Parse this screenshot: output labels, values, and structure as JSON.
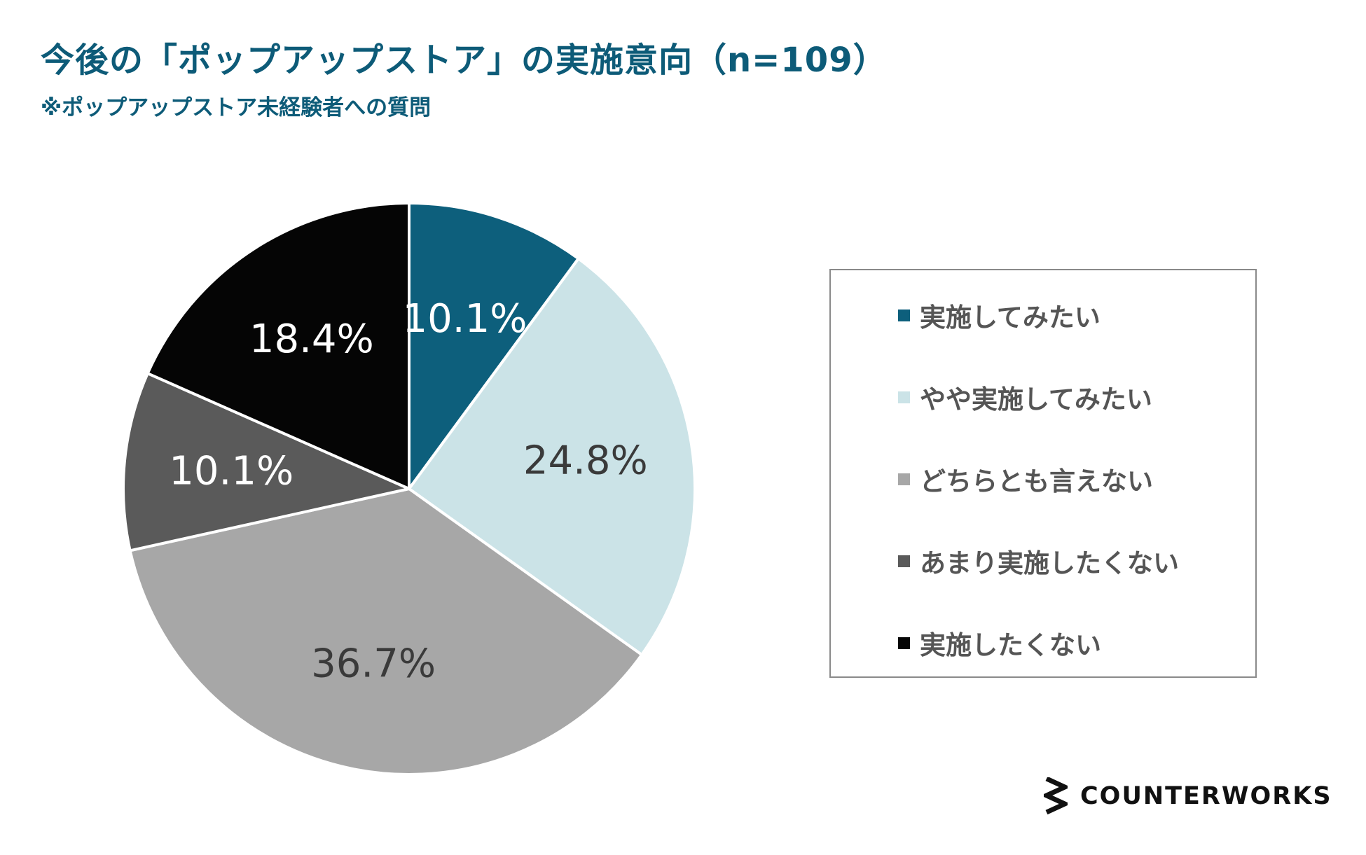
{
  "title": "今後の「ポップアップストア」の実施意向（n=109）",
  "subtitle": "※ポップアップストア未経験者への質問",
  "brand": {
    "name": "COUNTERWORKS",
    "icon": "counterworks-logo-icon"
  },
  "chart_data": {
    "type": "pie",
    "title": "今後の「ポップアップストア」の実施意向（n=109）",
    "subtitle": "※ポップアップストア未経験者への質問",
    "legend_position": "right",
    "start_angle": "12 o'clock, clockwise",
    "slices": [
      {
        "label": "実施してみたい",
        "value": 10.1,
        "display": "10.1%",
        "color": "#0d5f7c",
        "label_color": "#ffffff"
      },
      {
        "label": "やや実施してみたい",
        "value": 24.8,
        "display": "24.8%",
        "color": "#cbe3e7",
        "label_color": "#3a3a3a"
      },
      {
        "label": "どちらとも言えない",
        "value": 36.7,
        "display": "36.7%",
        "color": "#a7a7a7",
        "label_color": "#3a3a3a"
      },
      {
        "label": "あまり実施したくない",
        "value": 10.1,
        "display": "10.1%",
        "color": "#5a5a5a",
        "label_color": "#ffffff"
      },
      {
        "label": "実施したくない",
        "value": 18.4,
        "display": "18.4%",
        "color": "#050505",
        "label_color": "#ffffff"
      }
    ]
  }
}
